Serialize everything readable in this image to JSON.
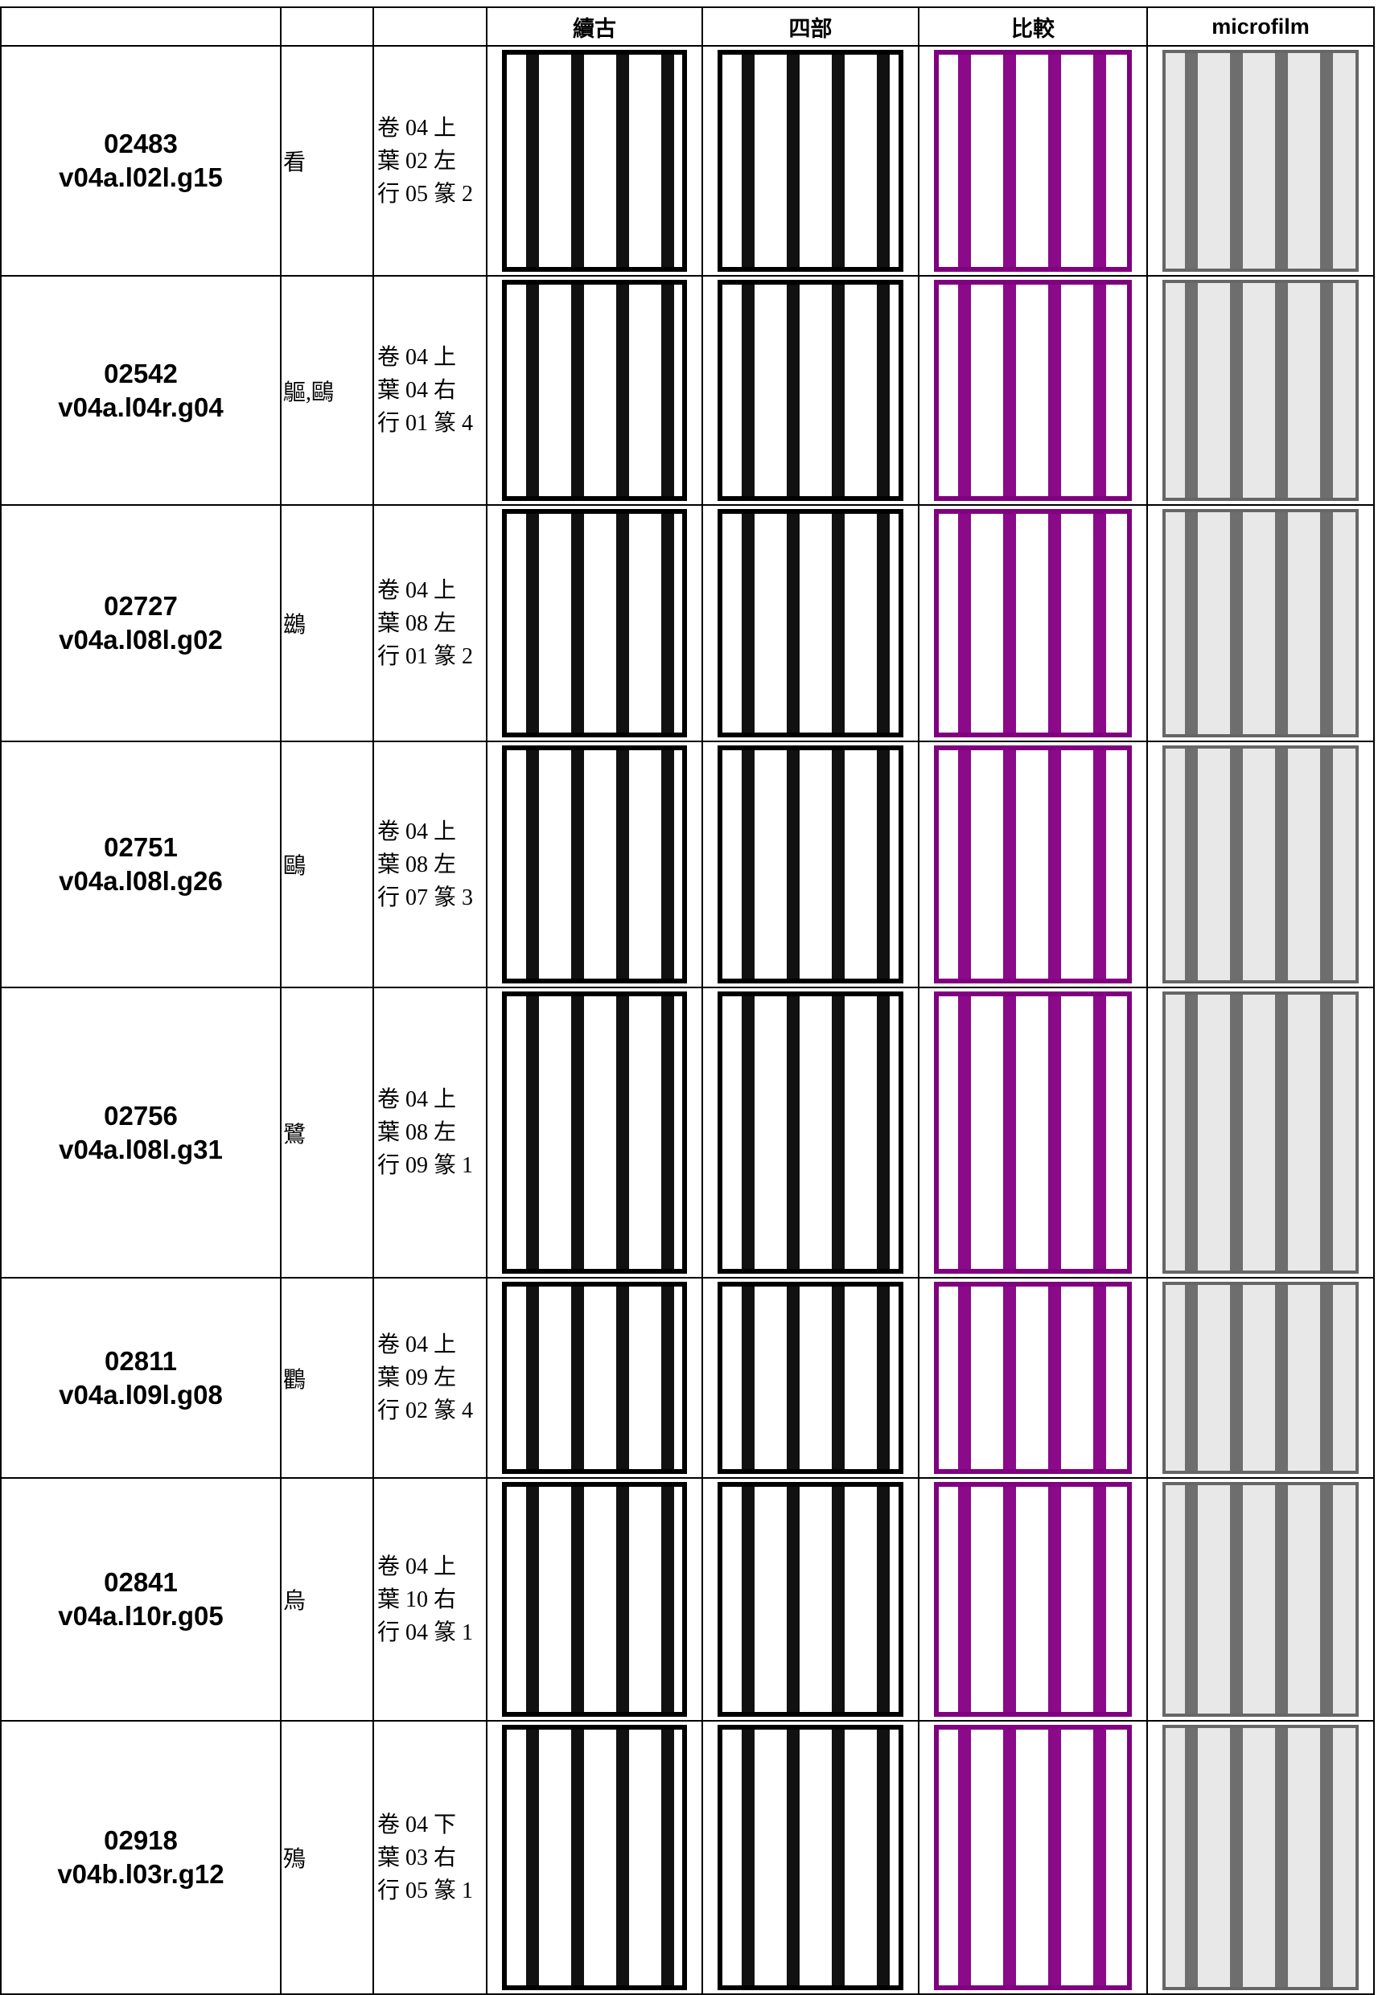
{
  "table": {
    "header": [
      "續古",
      "四部",
      "比較",
      "microfilm"
    ],
    "rows": [
      {
        "id": "02483",
        "code": "v04a.l02l.g15",
        "char": "看",
        "location": [
          "卷 04 上",
          "葉 02 左",
          "行 05 篆 2"
        ]
      },
      {
        "id": "02542",
        "code": "v04a.l04r.g04",
        "char": "䳼,鷗",
        "location": [
          "卷 04 上",
          "葉 04 右",
          "行 01 篆 4"
        ]
      },
      {
        "id": "02727",
        "code": "v04a.l08l.g02",
        "char": "鷀",
        "location": [
          "卷 04 上",
          "葉 08 左",
          "行 01 篆 2"
        ]
      },
      {
        "id": "02751",
        "code": "v04a.l08l.g26",
        "char": "鷗",
        "location": [
          "卷 04 上",
          "葉 08 左",
          "行 07 篆 3"
        ]
      },
      {
        "id": "02756",
        "code": "v04a.l08l.g31",
        "char": "鷺",
        "location": [
          "卷 04 上",
          "葉 08 左",
          "行 09 篆 1"
        ]
      },
      {
        "id": "02811",
        "code": "v04a.l09l.g08",
        "char": "鸜",
        "location": [
          "卷 04 上",
          "葉 09 左",
          "行 02 篆 4"
        ]
      },
      {
        "id": "02841",
        "code": "v04a.l10r.g05",
        "char": "烏",
        "location": [
          "卷 04 上",
          "葉 10 右",
          "行 04 篆 1"
        ]
      },
      {
        "id": "02918",
        "code": "v04b.l03r.g12",
        "char": "殦",
        "location": [
          "卷 04 下",
          "葉 03 右",
          "行 05 篆 1"
        ]
      }
    ]
  }
}
